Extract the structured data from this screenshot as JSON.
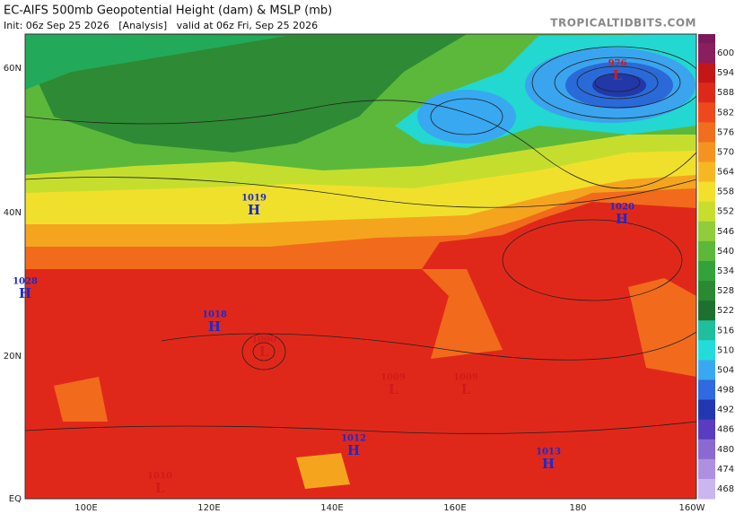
{
  "header": {
    "title": "EC-AIFS 500mb Geopotential Height (dam) & MSLP (mb)",
    "subtitle": "Init: 06z Sep 25 2026   [Analysis]   valid at 06z Fri, Sep 25 2026",
    "site": "TROPICALTIDBITS.COM"
  },
  "axes": {
    "latitudes": [
      "60N",
      "40N",
      "20N",
      "EQ"
    ],
    "longitudes": [
      "100E",
      "120E",
      "140E",
      "160E",
      "180",
      "160W"
    ]
  },
  "colorbar": {
    "labels": [
      600,
      594,
      588,
      582,
      576,
      570,
      564,
      558,
      552,
      546,
      540,
      534,
      528,
      522,
      516,
      510,
      504,
      498,
      492,
      486,
      480,
      474,
      468
    ]
  },
  "pressure_centers": [
    {
      "kind": "H",
      "value": "1019"
    },
    {
      "kind": "H",
      "value": "1020"
    },
    {
      "kind": "H",
      "value": "1028"
    },
    {
      "kind": "H",
      "value": "1018"
    },
    {
      "kind": "L",
      "value": "1000"
    },
    {
      "kind": "L",
      "value": "1009"
    },
    {
      "kind": "L",
      "value": "1009"
    },
    {
      "kind": "H",
      "value": "1012"
    },
    {
      "kind": "H",
      "value": "1013"
    },
    {
      "kind": "L",
      "value": "1010"
    },
    {
      "kind": "L",
      "value": "976"
    }
  ]
}
